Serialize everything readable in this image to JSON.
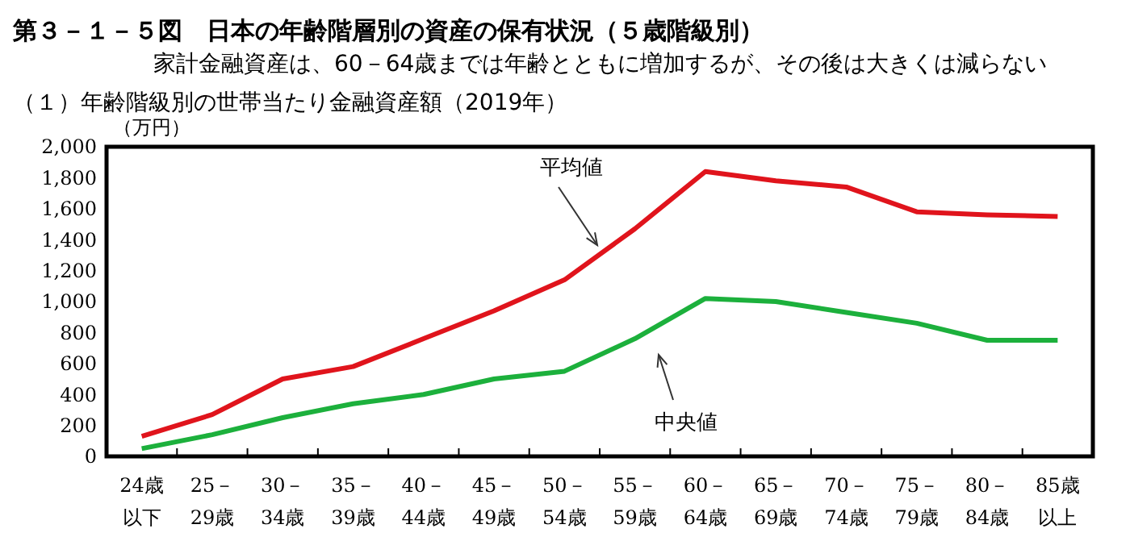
{
  "chart_data": {
    "type": "line",
    "title": "第３－１－５図　日本の年齢階層別の資産の保有状況（５歳階級別）",
    "subtitle": "家計金融資産は、60－64歳までは年齢とともに増加するが、その後は大きくは減らない",
    "ylabel": "（万円）",
    "categories": [
      "24歳以下",
      "25－29歳",
      "30－34歳",
      "35－39歳",
      "40－44歳",
      "45－49歳",
      "50－54歳",
      "55－59歳",
      "60－64歳",
      "65－69歳",
      "70－74歳",
      "75－79歳",
      "80－84歳",
      "85歳以上"
    ],
    "series": [
      {
        "color": "#e0141c",
        "values": [
          130,
          270,
          500,
          580,
          760,
          940,
          1140,
          1470,
          1840,
          1780,
          1740,
          1580,
          1560,
          1550
        ]
      },
      {
        "color": "#1cb03c",
        "values": [
          50,
          140,
          250,
          340,
          400,
          500,
          550,
          760,
          1020,
          1000,
          930,
          860,
          750,
          750
        ]
      }
    ],
    "ylim": [
      0,
      2000
    ],
    "yticks": [
      0,
      200,
      400,
      600,
      800,
      {
        "value": 1000,
        "label": "1,000"
      },
      {
        "value": 1200,
        "label": "1,200"
      },
      {
        "value": 1400,
        "label": "1,400"
      },
      {
        "value": 1600,
        "label": "1,600"
      },
      {
        "value": 1800,
        "label": "1,800"
      },
      {
        "value": 2000,
        "label": "2,000"
      }
    ],
    "grid": false,
    "marker": "none",
    "line_style": "solid",
    "annotations": [
      "（１）年齢階級別の世帯当たり金融資産額（2019年）",
      "平均値",
      "中央値"
    ]
  }
}
